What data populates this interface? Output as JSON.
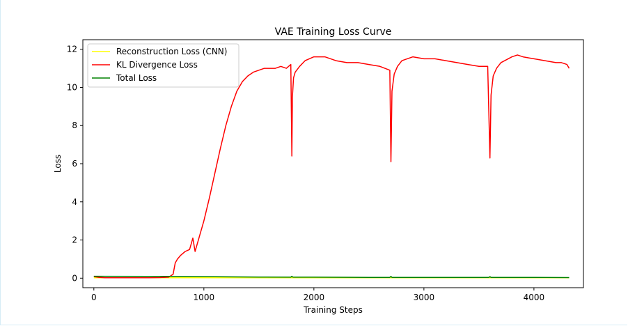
{
  "chart_data": {
    "type": "line",
    "title": "VAE Training Loss Curve",
    "xlabel": "Training Steps",
    "ylabel": "Loss",
    "xlim": [
      -100,
      4450
    ],
    "ylim": [
      -0.5,
      12.5
    ],
    "xticks": [
      0,
      1000,
      2000,
      3000,
      4000
    ],
    "xtick_labels": [
      "0",
      "1000",
      "2000",
      "3000",
      "4000"
    ],
    "yticks": [
      0,
      2,
      4,
      6,
      8,
      10,
      12
    ],
    "ytick_labels": [
      "0",
      "2",
      "4",
      "6",
      "8",
      "10",
      "12"
    ],
    "grid": false,
    "legend_position": "top-left",
    "series": [
      {
        "name": "Reconstruction Loss (CNN)",
        "color": "#ffff00",
        "x": [
          0,
          4320
        ],
        "y": [
          0.02,
          0.02
        ]
      },
      {
        "name": "KL Divergence Loss",
        "color": "#ff0000",
        "x": [
          0,
          50,
          100,
          200,
          300,
          400,
          500,
          600,
          680,
          720,
          740,
          760,
          790,
          830,
          870,
          900,
          920,
          960,
          1000,
          1050,
          1100,
          1150,
          1200,
          1250,
          1300,
          1350,
          1400,
          1450,
          1500,
          1550,
          1600,
          1650,
          1700,
          1750,
          1790,
          1800,
          1805,
          1815,
          1830,
          1870,
          1920,
          2000,
          2100,
          2200,
          2300,
          2400,
          2500,
          2600,
          2690,
          2700,
          2710,
          2730,
          2760,
          2800,
          2900,
          3000,
          3100,
          3200,
          3300,
          3400,
          3500,
          3580,
          3600,
          3610,
          3630,
          3660,
          3700,
          3800,
          3850,
          3900,
          4000,
          4100,
          4200,
          4250,
          4300,
          4320
        ],
        "y": [
          0.08,
          0.04,
          0.02,
          0.02,
          0.02,
          0.02,
          0.02,
          0.03,
          0.05,
          0.2,
          0.8,
          1.0,
          1.2,
          1.4,
          1.5,
          2.1,
          1.4,
          2.2,
          3.0,
          4.2,
          5.5,
          6.8,
          8.0,
          9.0,
          9.8,
          10.3,
          10.6,
          10.8,
          10.9,
          11.0,
          11.0,
          11.0,
          11.1,
          11.0,
          11.2,
          6.4,
          9.5,
          10.5,
          10.8,
          11.1,
          11.4,
          11.6,
          11.6,
          11.4,
          11.3,
          11.3,
          11.2,
          11.1,
          10.9,
          6.1,
          9.8,
          10.7,
          11.1,
          11.4,
          11.6,
          11.5,
          11.5,
          11.4,
          11.3,
          11.2,
          11.1,
          11.1,
          6.3,
          9.6,
          10.6,
          11.0,
          11.3,
          11.6,
          11.7,
          11.6,
          11.5,
          11.4,
          11.3,
          11.3,
          11.2,
          11.0
        ]
      },
      {
        "name": "Total Loss",
        "color": "#008000",
        "x": [
          0,
          500,
          800,
          1000,
          1500,
          1790,
          1800,
          1810,
          2000,
          2500,
          2690,
          2700,
          2710,
          3000,
          3500,
          3590,
          3600,
          3610,
          4000,
          4320
        ],
        "y": [
          0.1,
          0.09,
          0.09,
          0.08,
          0.06,
          0.05,
          0.1,
          0.05,
          0.05,
          0.04,
          0.04,
          0.09,
          0.04,
          0.04,
          0.04,
          0.04,
          0.08,
          0.04,
          0.04,
          0.03
        ]
      }
    ]
  }
}
